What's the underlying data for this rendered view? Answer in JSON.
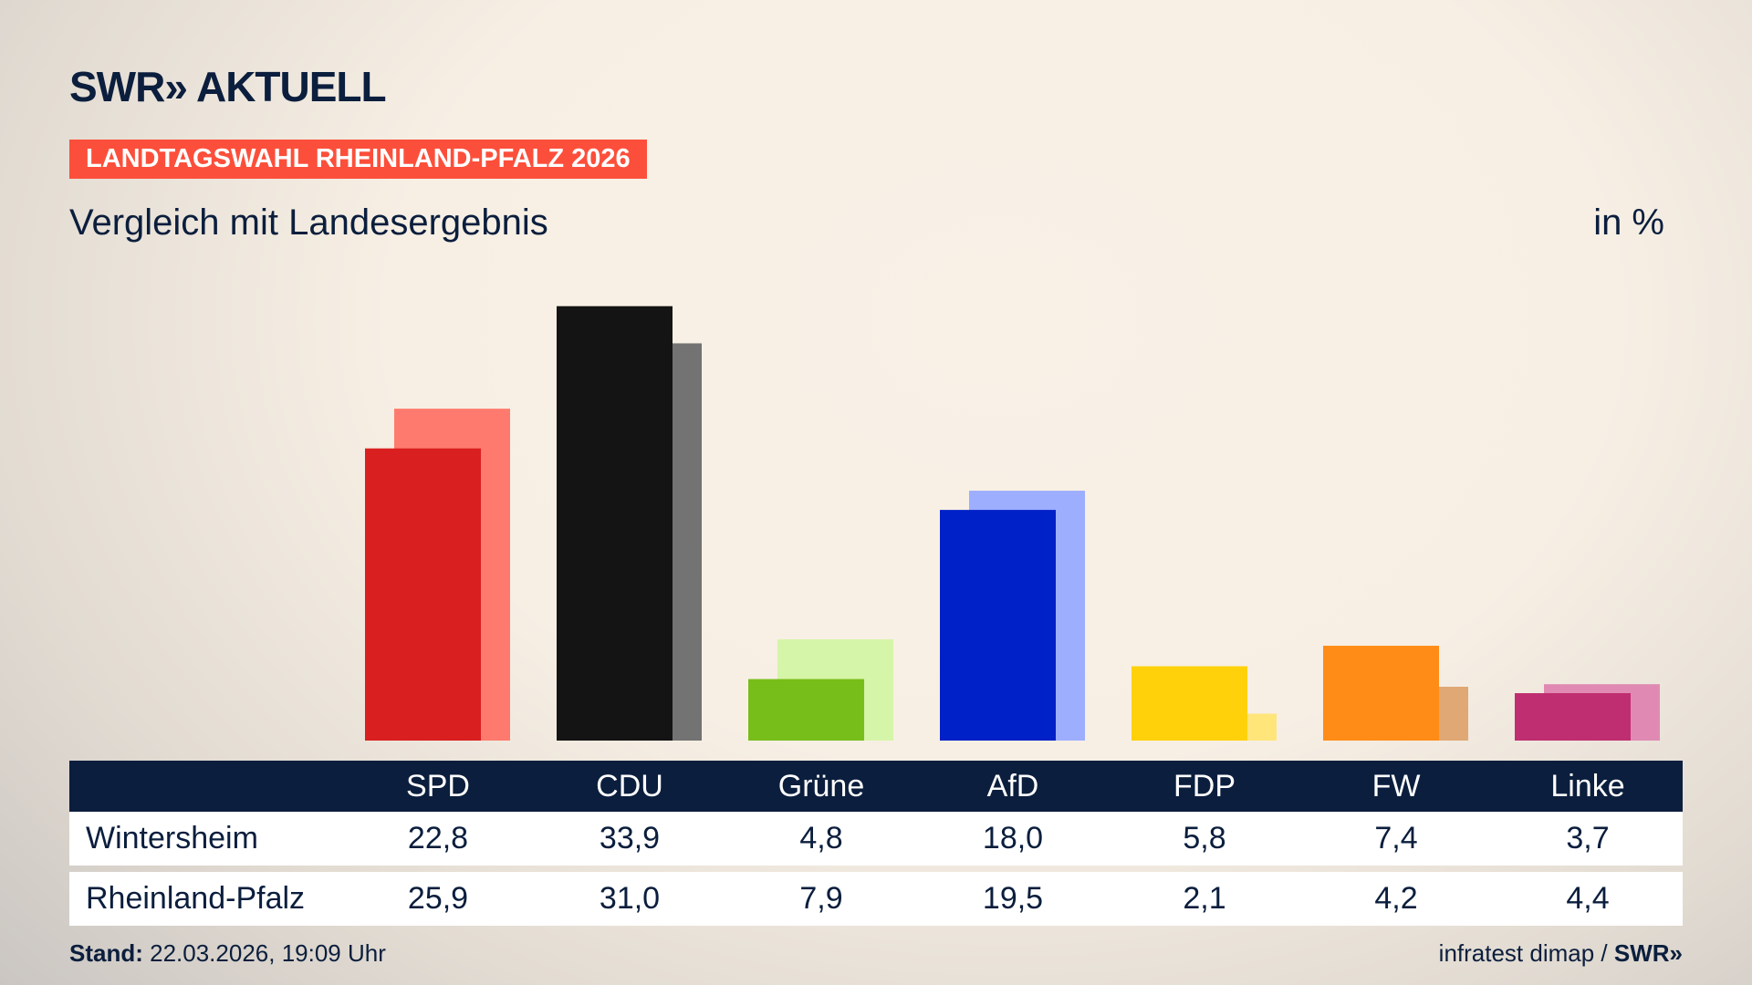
{
  "header": {
    "logo": "SWR» AKTUELL",
    "banner": "LANDTAGSWAHL RHEINLAND-PFALZ 2026",
    "subtitle": "Vergleich mit Landesergebnis",
    "unit": "in %"
  },
  "chart_data": {
    "type": "bar",
    "title": "Vergleich mit Landesergebnis",
    "ylabel": "in %",
    "categories": [
      "SPD",
      "CDU",
      "Grüne",
      "AfD",
      "FDP",
      "FW",
      "Linke"
    ],
    "series": [
      {
        "name": "Wintersheim",
        "values": [
          22.8,
          33.9,
          4.8,
          18.0,
          5.8,
          7.4,
          3.7
        ],
        "colors": [
          "#d91f1f",
          "#141414",
          "#78be1a",
          "#0021c7",
          "#ffd10a",
          "#ff8c17",
          "#bf2e70"
        ]
      },
      {
        "name": "Rheinland-Pfalz",
        "values": [
          25.9,
          31.0,
          7.9,
          19.5,
          2.1,
          4.2,
          4.4
        ],
        "colors": [
          "#ff7a6e",
          "#737373",
          "#d5f5a8",
          "#9daeff",
          "#ffe57a",
          "#e0a874",
          "#e08ab3"
        ]
      }
    ],
    "grid": false
  },
  "table": {
    "headers": [
      "SPD",
      "CDU",
      "Grüne",
      "AfD",
      "FDP",
      "FW",
      "Linke"
    ],
    "rows": [
      {
        "label": "Wintersheim",
        "values": [
          "22,8",
          "33,9",
          "4,8",
          "18,0",
          "5,8",
          "7,4",
          "3,7"
        ]
      },
      {
        "label": "Rheinland-Pfalz",
        "values": [
          "25,9",
          "31,0",
          "7,9",
          "19,5",
          "2,1",
          "4,2",
          "4,4"
        ]
      }
    ]
  },
  "footer": {
    "stand_label": "Stand:",
    "stand_value": " 22.03.2026, 19:09 Uhr",
    "source": "infratest dimap / ",
    "source_logo": "SWR»"
  },
  "colors": {
    "navy": "#0b1e3d",
    "banner": "#fc4f3b"
  }
}
